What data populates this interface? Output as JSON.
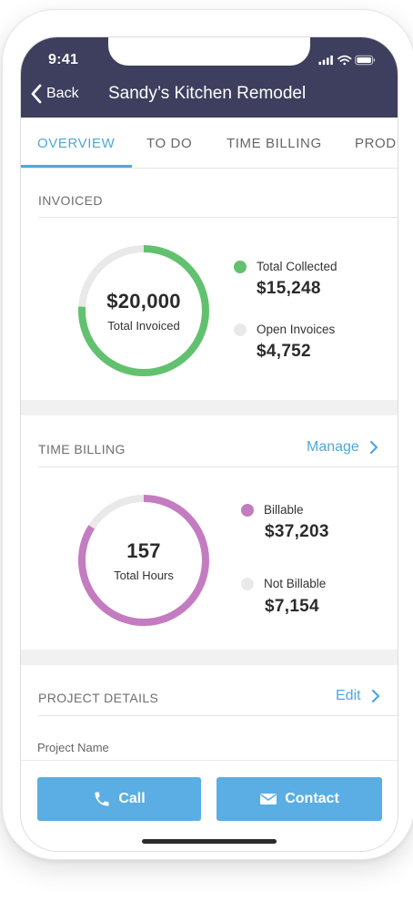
{
  "status_bar": {
    "time": "9:41"
  },
  "nav": {
    "back_label": "Back",
    "title": "Sandy’s Kitchen Remodel"
  },
  "tabs": [
    {
      "label": "OVERVIEW",
      "active": true
    },
    {
      "label": "TO DO",
      "active": false
    },
    {
      "label": "TIME BILLING",
      "active": false
    },
    {
      "label": "PRODU",
      "active": false
    }
  ],
  "invoiced": {
    "section_label": "INVOICED",
    "total_value": "$20,000",
    "total_label": "Total Invoiced",
    "collected_fraction": 0.76,
    "collected_color": "#62c16f",
    "open_color": "#e9e9e9",
    "legend": [
      {
        "label": "Total Collected",
        "value": "$15,248",
        "color": "#62c16f"
      },
      {
        "label": "Open Invoices",
        "value": "$4,752",
        "color": "#e9e9e9"
      }
    ]
  },
  "time_billing": {
    "section_label": "TIME BILLING",
    "manage_label": "Manage",
    "total_value": "157",
    "total_label": "Total Hours",
    "billable_fraction": 0.84,
    "billable_color": "#c47cc0",
    "not_billable_color": "#e9e9e9",
    "legend": [
      {
        "label": "Billable",
        "value": "$37,203",
        "color": "#c47cc0"
      },
      {
        "label": "Not Billable",
        "value": "$7,154",
        "color": "#e9e9e9"
      }
    ]
  },
  "project_details": {
    "section_label": "PROJECT DETAILS",
    "edit_label": "Edit",
    "project_name_label": "Project Name"
  },
  "actions": {
    "call_label": "Call",
    "contact_label": "Contact"
  },
  "colors": {
    "header_bg": "#3e3f5e",
    "accent": "#4ea8dc",
    "button_bg": "#5aaee3"
  }
}
